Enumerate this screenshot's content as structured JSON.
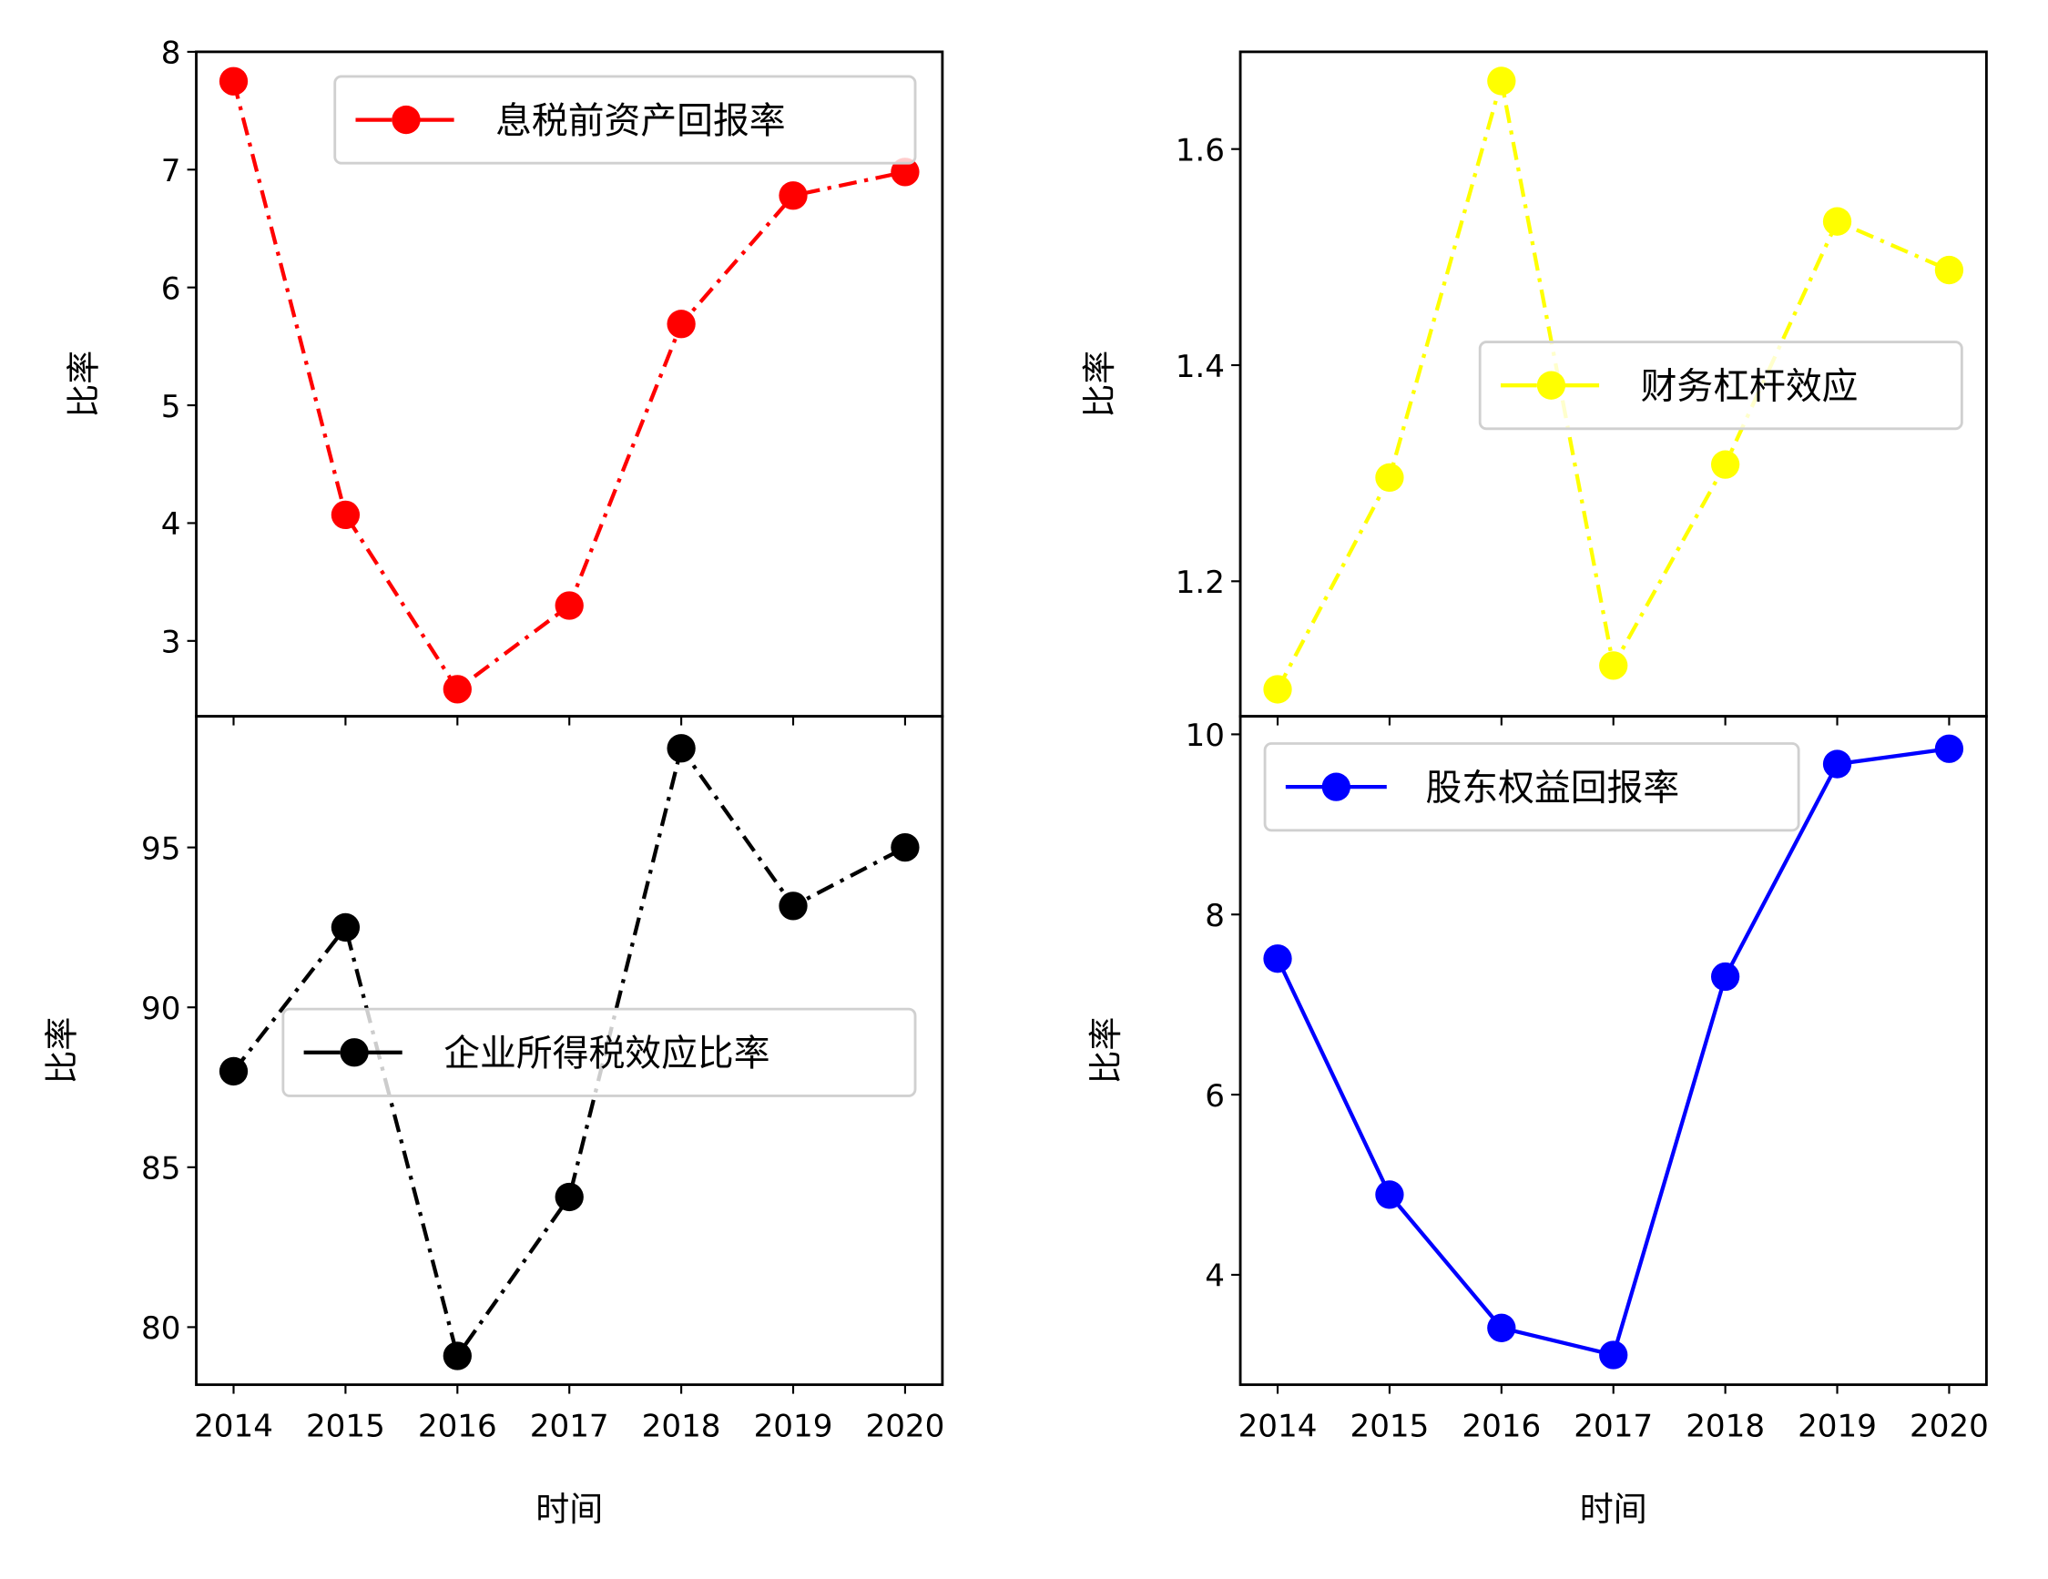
{
  "chart_data": [
    {
      "type": "line",
      "position": "top-left",
      "categories": [
        "2014",
        "2015",
        "2016",
        "2017",
        "2018",
        "2019",
        "2020"
      ],
      "series": [
        {
          "name": "息税前资产回报率",
          "values": [
            7.75,
            4.07,
            2.59,
            3.3,
            5.69,
            6.78,
            6.98
          ],
          "color": "#ff0000",
          "linestyle": "dashdot",
          "marker": "circle"
        }
      ],
      "xlabel": "",
      "ylabel": "比率",
      "ylim": [
        2.36,
        8.0
      ],
      "yticks": [
        3,
        4,
        5,
        6,
        7,
        8
      ],
      "legend_position": "upper right",
      "grid": false
    },
    {
      "type": "line",
      "position": "top-right",
      "categories": [
        "2014",
        "2015",
        "2016",
        "2017",
        "2018",
        "2019",
        "2020"
      ],
      "series": [
        {
          "name": "财务杠杆效应",
          "values": [
            1.1,
            1.296,
            1.663,
            1.122,
            1.308,
            1.533,
            1.488
          ],
          "color": "#ffff00",
          "linestyle": "dashdot",
          "marker": "circle"
        }
      ],
      "xlabel": "",
      "ylabel": "比率",
      "ylim": [
        1.075,
        1.69
      ],
      "yticks": [
        1.2,
        1.4,
        1.6
      ],
      "yticklabels": [
        "1.2",
        "1.4",
        "1.6"
      ],
      "legend_position": "center right",
      "grid": false
    },
    {
      "type": "line",
      "position": "bottom-left",
      "categories": [
        "2014",
        "2015",
        "2016",
        "2017",
        "2018",
        "2019",
        "2020"
      ],
      "series": [
        {
          "name": "企业所得税效应比率",
          "values": [
            88.0,
            92.5,
            79.1,
            84.07,
            98.1,
            93.17,
            95.0
          ],
          "color": "#000000",
          "linestyle": "dashdot",
          "marker": "circle"
        }
      ],
      "xlabel": "时间",
      "ylabel": "比率",
      "ylim": [
        78.2,
        99.1
      ],
      "yticks": [
        80,
        85,
        90,
        95
      ],
      "legend_position": "center right",
      "grid": false
    },
    {
      "type": "line",
      "position": "bottom-right",
      "categories": [
        "2014",
        "2015",
        "2016",
        "2017",
        "2018",
        "2019",
        "2020"
      ],
      "series": [
        {
          "name": "股东权益回报率",
          "values": [
            7.51,
            4.89,
            3.41,
            3.11,
            7.31,
            9.67,
            9.84
          ],
          "color": "#0000ff",
          "linestyle": "solid",
          "marker": "circle"
        }
      ],
      "xlabel": "时间",
      "ylabel": "比率",
      "ylim": [
        2.78,
        10.2
      ],
      "yticks": [
        4,
        6,
        8,
        10
      ],
      "legend_position": "upper left",
      "grid": false
    }
  ],
  "labels": {
    "ylabel": "比率",
    "xlabel": "时间"
  }
}
